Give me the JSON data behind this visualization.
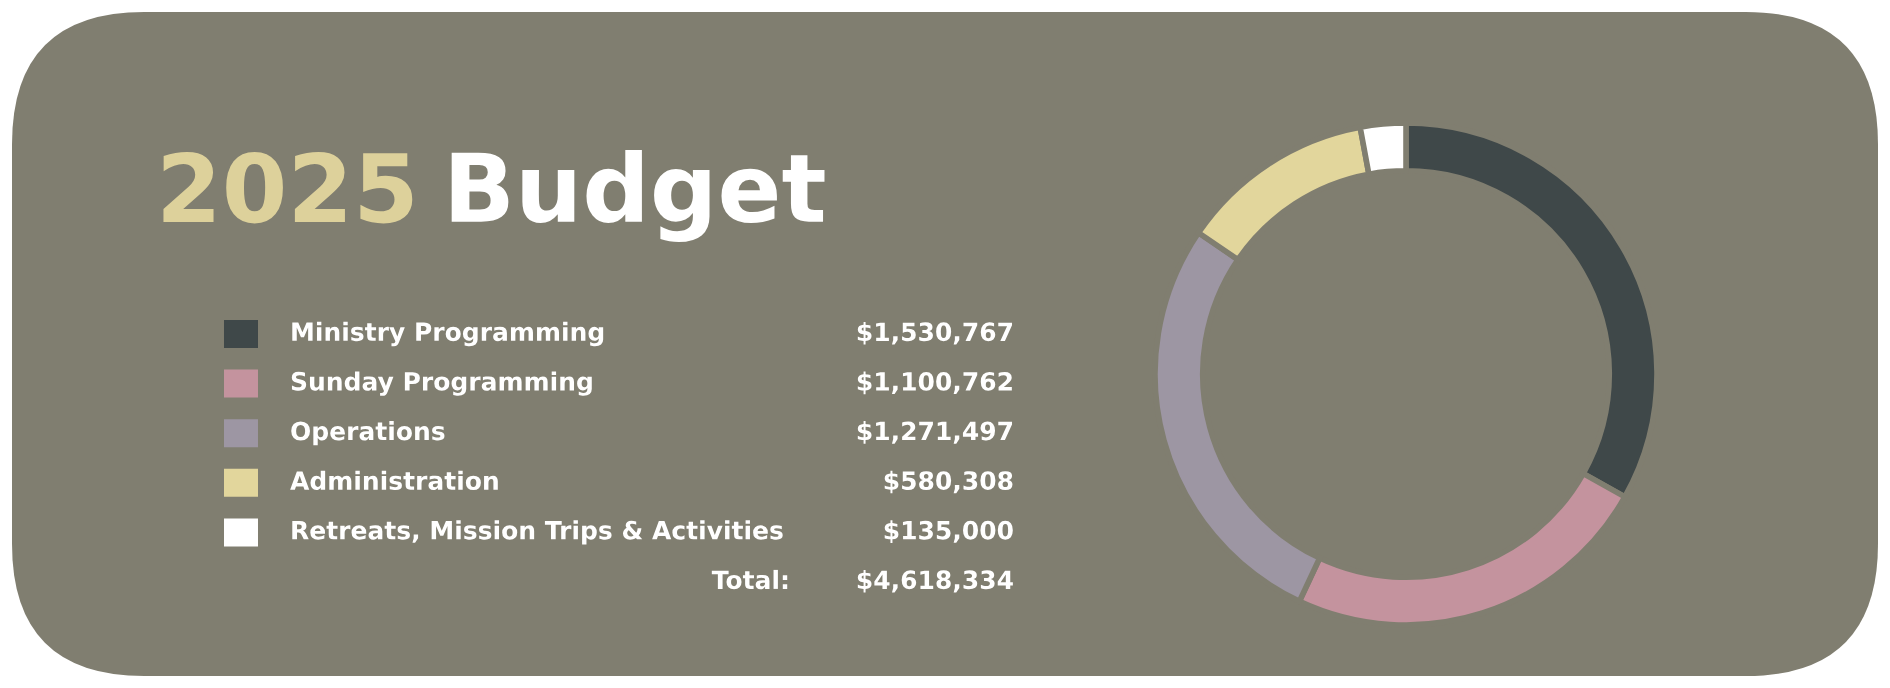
{
  "chart_data": {
    "type": "donut",
    "title": "2025 Budget",
    "categories": [
      "Ministry Programming",
      "Sunday Programming",
      "Operations",
      "Administration",
      "Retreats, Mission Trips & Activities"
    ],
    "values": [
      1530767,
      1100762,
      1271497,
      580308,
      135000
    ],
    "value_labels": [
      "$1,530,767",
      "$1,100,762",
      "$1,271,497",
      "$580,308",
      "$135,000"
    ],
    "colors": [
      "#3f4849",
      "#c4939e",
      "#9d96a3",
      "#e2d69c",
      "#ffffff"
    ],
    "annotations": [
      "Total:",
      "$4,618,334"
    ],
    "legend": "left"
  }
}
